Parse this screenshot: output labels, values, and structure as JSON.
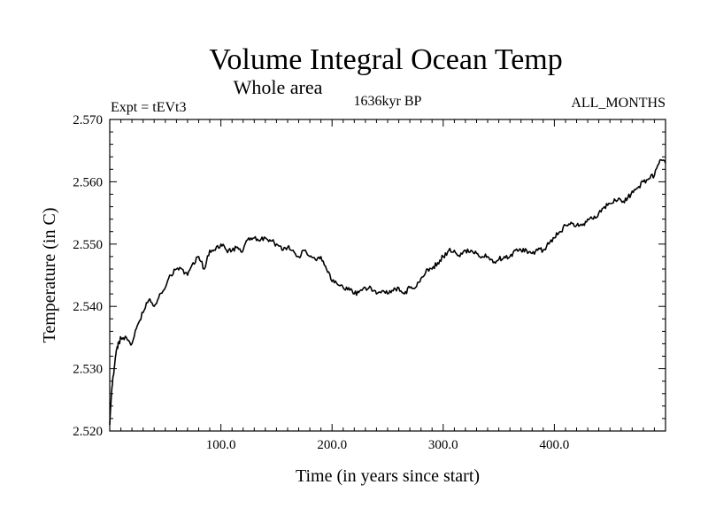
{
  "chart_data": {
    "type": "line",
    "title": "Volume Integral Ocean Temp",
    "subtitle": "Whole area",
    "experiment_label": "Expt = tEVt3",
    "period_label": "1636kyr BP",
    "months_label": "ALL_MONTHS",
    "xlabel": "Time (in years since start)",
    "ylabel": "Temperature (in C)",
    "xlim": [
      0,
      500
    ],
    "ylim": [
      2.52,
      2.57
    ],
    "x_ticks": [
      {
        "value": 100,
        "label": "100.0"
      },
      {
        "value": 200,
        "label": "200.0"
      },
      {
        "value": 300,
        "label": "300.0"
      },
      {
        "value": 400,
        "label": "400.0"
      }
    ],
    "y_ticks": [
      {
        "value": 2.52,
        "label": "2.520"
      },
      {
        "value": 2.53,
        "label": "2.530"
      },
      {
        "value": 2.54,
        "label": "2.540"
      },
      {
        "value": 2.55,
        "label": "2.550"
      },
      {
        "value": 2.56,
        "label": "2.560"
      },
      {
        "value": 2.57,
        "label": "2.570"
      }
    ],
    "series": [
      {
        "name": "Volume Integral Ocean Temp",
        "x": [
          0,
          2,
          4,
          6,
          8,
          10,
          15,
          20,
          25,
          30,
          35,
          40,
          45,
          50,
          55,
          60,
          65,
          70,
          75,
          80,
          85,
          90,
          95,
          100,
          105,
          110,
          115,
          120,
          125,
          130,
          135,
          140,
          145,
          150,
          155,
          160,
          165,
          170,
          175,
          180,
          185,
          190,
          195,
          200,
          205,
          210,
          215,
          220,
          225,
          230,
          235,
          240,
          245,
          250,
          255,
          260,
          265,
          270,
          275,
          280,
          285,
          290,
          295,
          300,
          305,
          310,
          315,
          320,
          325,
          330,
          335,
          340,
          345,
          350,
          355,
          360,
          365,
          370,
          375,
          380,
          385,
          390,
          395,
          400,
          405,
          410,
          415,
          420,
          425,
          430,
          435,
          440,
          445,
          450,
          455,
          460,
          465,
          470,
          475,
          480,
          485,
          490,
          495,
          500
        ],
        "values": [
          2.521,
          2.527,
          2.53,
          2.533,
          2.534,
          2.535,
          2.535,
          2.534,
          2.537,
          2.539,
          2.541,
          2.54,
          2.542,
          2.543,
          2.545,
          2.546,
          2.546,
          2.545,
          2.547,
          2.548,
          2.546,
          2.549,
          2.549,
          2.55,
          2.549,
          2.549,
          2.5495,
          2.549,
          2.551,
          2.551,
          2.5505,
          2.551,
          2.5505,
          2.55,
          2.549,
          2.5495,
          2.549,
          2.548,
          2.549,
          2.548,
          2.5475,
          2.548,
          2.546,
          2.544,
          2.5435,
          2.543,
          2.543,
          2.542,
          2.5425,
          2.543,
          2.543,
          2.542,
          2.5425,
          2.542,
          2.5425,
          2.543,
          2.542,
          2.543,
          2.543,
          2.5445,
          2.546,
          2.546,
          2.547,
          2.548,
          2.549,
          2.549,
          2.548,
          2.549,
          2.549,
          2.5485,
          2.548,
          2.548,
          2.547,
          2.5475,
          2.548,
          2.548,
          2.549,
          2.549,
          2.549,
          2.5485,
          2.549,
          2.549,
          2.55,
          2.551,
          2.552,
          2.553,
          2.5535,
          2.553,
          2.553,
          2.554,
          2.554,
          2.555,
          2.556,
          2.5565,
          2.557,
          2.557,
          2.557,
          2.5585,
          2.559,
          2.56,
          2.5605,
          2.561,
          2.5635,
          2.563
        ]
      }
    ]
  }
}
